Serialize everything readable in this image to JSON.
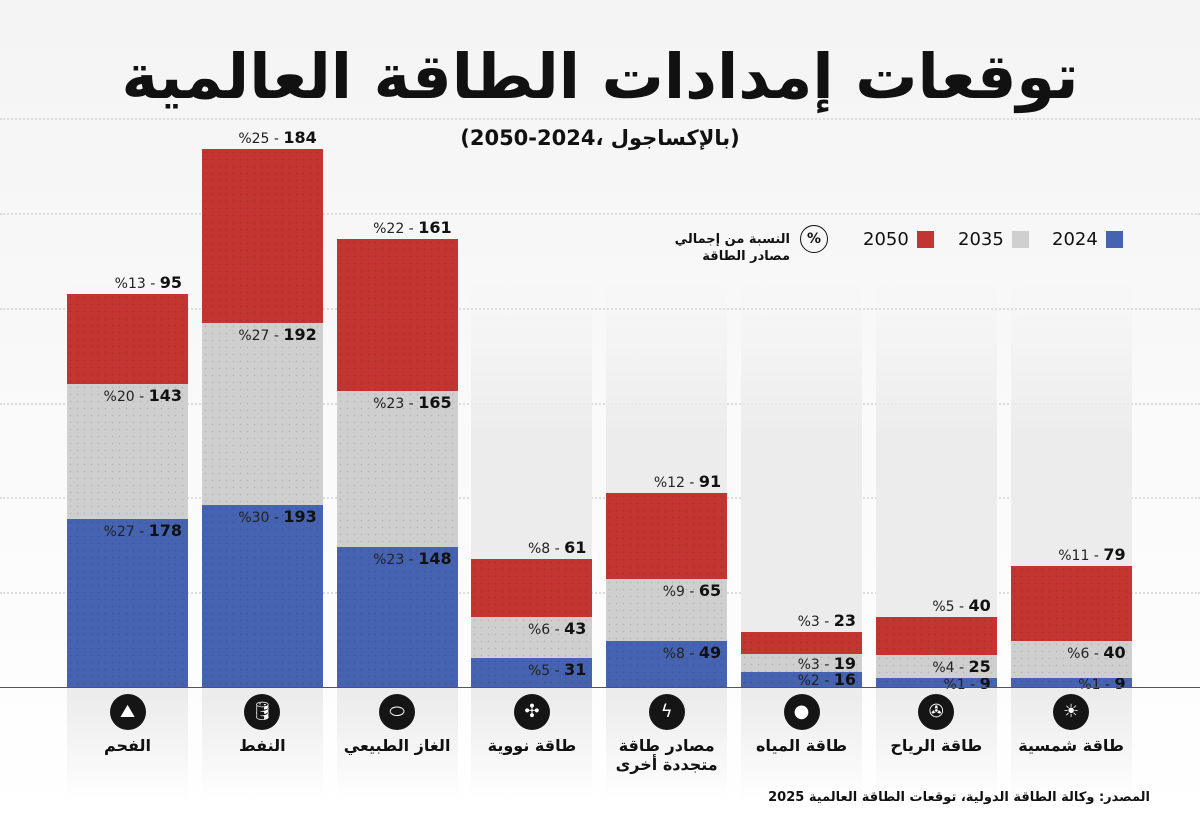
{
  "chart_data": {
    "type": "bar",
    "stacked": true,
    "title": "توقعات إمدادات الطاقة العالمية",
    "subtitle": "(بالإكساجول ،2024-2050)",
    "unit": "إكساجول",
    "categories": [
      "الفحم",
      "النفط",
      "الغاز الطبيعي",
      "طاقة نووية",
      "مصادر طاقة متجددة أخرى",
      "طاقة المياه",
      "طاقة الرياح",
      "طاقة شمسية"
    ],
    "icons": [
      "coal-icon",
      "oil-barrel-icon",
      "gas-tank-icon",
      "nuclear-icon",
      "renewable-leaf-icon",
      "water-drop-icon",
      "wind-turbine-icon",
      "sun-icon"
    ],
    "series": [
      {
        "name": "2024",
        "color": "#4563b0",
        "values": [
          178,
          193,
          148,
          31,
          49,
          16,
          9,
          9
        ],
        "percent": [
          "%27",
          "%30",
          "%23",
          "%5",
          "%8",
          "%2",
          "%1",
          "%1"
        ]
      },
      {
        "name": "2035",
        "color": "#cfcfcf",
        "values": [
          143,
          192,
          165,
          43,
          65,
          19,
          25,
          40
        ],
        "percent": [
          "%20",
          "%27",
          "%23",
          "%6",
          "%9",
          "%3",
          "%4",
          "%6"
        ]
      },
      {
        "name": "2050",
        "color": "#c33530",
        "values": [
          95,
          184,
          161,
          61,
          91,
          23,
          40,
          79
        ],
        "percent": [
          "%13",
          "%25",
          "%22",
          "%8",
          "%12",
          "%3",
          "%5",
          "%11"
        ]
      }
    ],
    "legend_position": "top-right",
    "grid": true
  },
  "legend": {
    "percent_symbol": "%",
    "percent_note_line1": "النسبة من إجمالي",
    "percent_note_line2": "مصادر الطاقة"
  },
  "source": "المصدر: وكالة الطاقة الدولية، توقعات الطاقة العالمية 2025"
}
